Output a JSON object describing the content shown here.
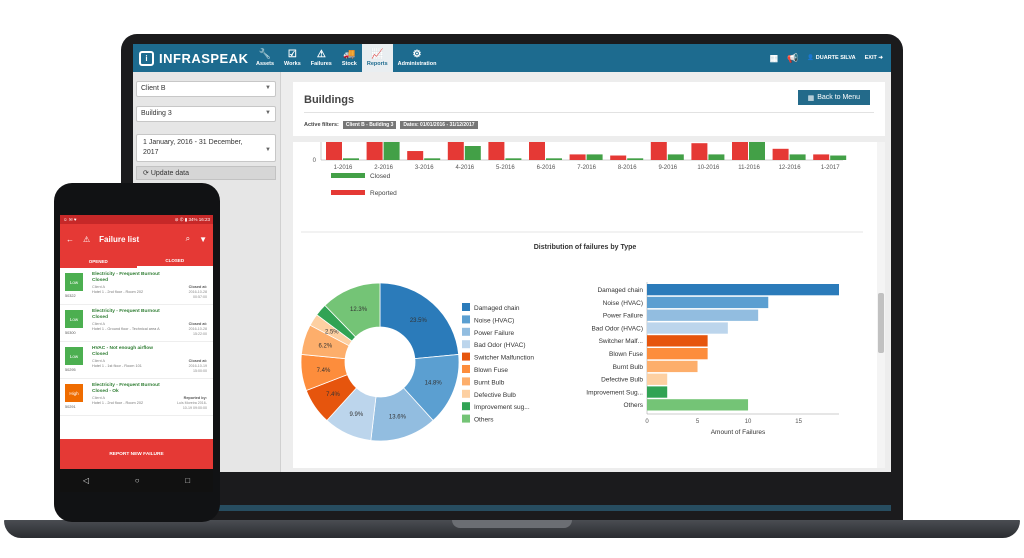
{
  "colors": {
    "nav": "#1d6b8f",
    "red": "#e53935",
    "green": "#43a047",
    "closed_tab": "#e53935"
  },
  "app": {
    "name": "INFRASPEAK",
    "logo_icon": "i"
  },
  "nav": {
    "items": [
      {
        "label": "Assets",
        "icon": "wrench-icon",
        "glyph": "🔧"
      },
      {
        "label": "Works",
        "icon": "clipboard-icon",
        "glyph": "☑"
      },
      {
        "label": "Failures",
        "icon": "warning-icon",
        "glyph": "⚠"
      },
      {
        "label": "Stock",
        "icon": "truck-icon",
        "glyph": "🚚"
      },
      {
        "label": "Reports",
        "icon": "chart-icon",
        "glyph": "📈"
      },
      {
        "label": "Administration",
        "icon": "gears-icon",
        "glyph": "⚙"
      }
    ],
    "active": "Reports",
    "user": "DUARTE SILVA",
    "exit": "EXIT"
  },
  "sidebar": {
    "client": "Client B",
    "building": "Building 3",
    "date_line1": "1 January, 2016 - 31 December,",
    "date_line2": "2017",
    "update": "Update data"
  },
  "page": {
    "title": "Buildings",
    "back": "Back to Menu",
    "filters_label": "Active filters:",
    "filter1": "Client B - Building 3",
    "filter2": "Dates: 01/01/2016 - 31/12/2017"
  },
  "chart_data": [
    {
      "type": "bar",
      "categories": [
        "1-2016",
        "2-2016",
        "3-2016",
        "4-2016",
        "5-2016",
        "6-2016",
        "7-2016",
        "8-2016",
        "9-2016",
        "10-2016",
        "11-2016",
        "12-2016",
        "1-2017"
      ],
      "series": [
        {
          "name": "Reported",
          "values": [
            5,
            5,
            1.6,
            5,
            5,
            5,
            1,
            0.8,
            4,
            3,
            5,
            2,
            1
          ]
        },
        {
          "name": "Closed",
          "values": [
            0.3,
            5,
            0.3,
            2.5,
            0.3,
            0.3,
            1,
            0.3,
            1,
            1,
            5,
            1,
            0.8
          ]
        }
      ],
      "ylim": [
        0,
        5
      ],
      "yticks": [
        0,
        5
      ],
      "legend": "bottom-left"
    },
    {
      "type": "pie",
      "title": "Distribution of failures by Type",
      "categories": [
        "Damaged chain",
        "Noise (HVAC)",
        "Power Failure",
        "Bad Odor (HVAC)",
        "Switcher Malfunction",
        "Blown Fuse",
        "Burnt Bulb",
        "Defective Bulb",
        "Improvement sug...",
        "Others"
      ],
      "values": [
        23.5,
        14.8,
        13.6,
        9.9,
        7.4,
        7.4,
        6.2,
        2.5,
        2.5,
        12.3
      ],
      "colors": [
        "#2b7bba",
        "#5b9fd1",
        "#92bde0",
        "#bcd5ec",
        "#e6550d",
        "#fd8d3c",
        "#fdae6b",
        "#fdd0a2",
        "#31a354",
        "#74c476"
      ],
      "labels": [
        "23.5%",
        "14.8%",
        "13.6%",
        "9.9%",
        "7.4%",
        "7.4%",
        "6.2%",
        "2.5%",
        "",
        "12.3%"
      ],
      "legend": "right"
    },
    {
      "type": "bar",
      "orientation": "horizontal",
      "categories": [
        "Damaged chain",
        "Noise (HVAC)",
        "Power Failure",
        "Bad Odor (HVAC)",
        "Switcher Malf...",
        "Blown Fuse",
        "Burnt Bulb",
        "Defective Bulb",
        "Improvement Sug...",
        "Others"
      ],
      "values": [
        19,
        12,
        11,
        8,
        6,
        6,
        5,
        2,
        2,
        10
      ],
      "colors": [
        "#2b7bba",
        "#5b9fd1",
        "#92bde0",
        "#bcd5ec",
        "#e6550d",
        "#fd8d3c",
        "#fdae6b",
        "#fdd0a2",
        "#31a354",
        "#74c476"
      ],
      "xlabel": "Amount of Failures",
      "xlim": [
        0,
        19
      ],
      "xticks": [
        0,
        5,
        10,
        15
      ]
    }
  ],
  "phone": {
    "status_left": "☺ ✉ ♥",
    "status_right": "⊘ ✆ ▮ 34% 16:23",
    "title": "Failure list",
    "tab_opened": "OPENED",
    "tab_closed": "CLOSED",
    "items": [
      {
        "prio": "Low",
        "prio_color": "#4caf50",
        "id": "50322",
        "t1": "Electricity - Frequent Burnout",
        "t2": "Closed",
        "t3": "Client A",
        "t4": "Hotel 1 - 2nd floor - Room 202",
        "r1": "Closed at:",
        "r2": "2016-10-28 00:57:00"
      },
      {
        "prio": "Low",
        "prio_color": "#4caf50",
        "id": "50300",
        "t1": "Electricity - Frequent Burnout",
        "t2": "Closed",
        "t3": "Client A",
        "t4": "Hotel 1 - Ground floor - Technical area A",
        "r1": "Closed at:",
        "r2": "2016-10-28 15:22:00"
      },
      {
        "prio": "Low",
        "prio_color": "#4caf50",
        "id": "50295",
        "t1": "HVAC - Not enough airflow",
        "t2": "Closed",
        "t3": "Client A",
        "t4": "Hotel 1 - 1st floor - Room 101",
        "r1": "Closed at:",
        "r2": "2016-10-19 15:00:00"
      },
      {
        "prio": "High",
        "prio_color": "#ef6c00",
        "id": "50291",
        "t1": "Electricity - Frequent Burnout",
        "t2": "Closed - Ok",
        "t3": "Client A",
        "t4": "Hotel 1 - 2nd floor - Room 202",
        "r1": "Reported by:",
        "r2": "Luis Moreira 2016-10-19 09:00:00"
      }
    ],
    "report": "REPORT NEW FAILURE"
  }
}
